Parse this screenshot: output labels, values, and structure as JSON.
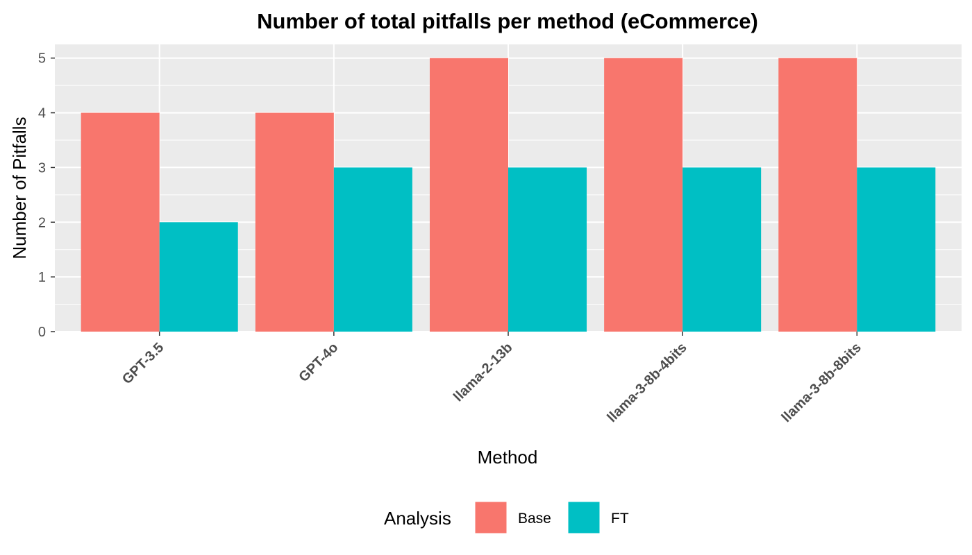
{
  "chart_data": {
    "type": "bar",
    "title": "Number of total pitfalls per method (eCommerce)",
    "xlabel": "Method",
    "ylabel": "Number of Pitfalls",
    "categories": [
      "GPT-3.5",
      "GPT-4o",
      "llama-2-13b",
      "llama-3-8b-4bits",
      "llama-3-8b-8bits"
    ],
    "series": [
      {
        "name": "Base",
        "values": [
          4,
          4,
          5,
          5,
          5
        ],
        "color": "#F8766D"
      },
      {
        "name": "FT",
        "values": [
          2,
          3,
          3,
          3,
          3
        ],
        "color": "#00BFC4"
      }
    ],
    "ylim": [
      0,
      5.25
    ],
    "yticks": [
      0,
      1,
      2,
      3,
      4,
      5
    ],
    "grid": true,
    "legend": {
      "title": "Analysis",
      "position": "bottom"
    },
    "panel_background": "#EBEBEB"
  }
}
